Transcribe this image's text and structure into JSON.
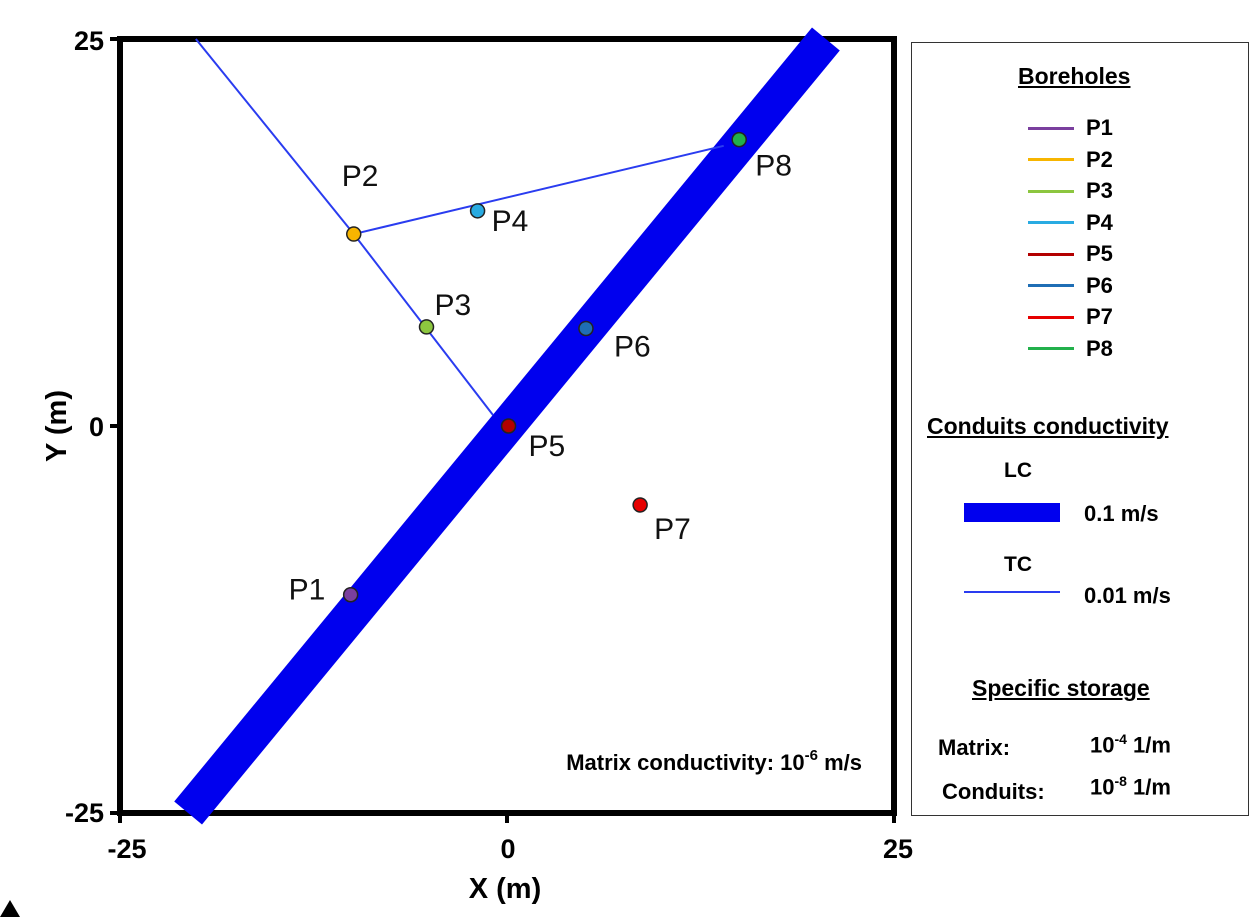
{
  "plot": {
    "x_label": "X (m)",
    "y_label": "Y (m)",
    "x_ticks": [
      "-25",
      "0",
      "25"
    ],
    "y_ticks": [
      "25",
      "0",
      "-25"
    ],
    "x_range": [
      -25,
      25
    ],
    "y_range": [
      -25,
      25
    ],
    "matrix_text": {
      "prefix": "Matrix conductivity: 10",
      "exp": "-6",
      "suffix": " m/s"
    }
  },
  "colors": {
    "lc_conduit": "#0000ee",
    "tc_conduit": "#2a3cf0",
    "axes": "#000000",
    "P1": "#7a3f9e",
    "P2": "#f7b500",
    "P3": "#8cc63f",
    "P4": "#29abe2",
    "P5": "#b30000",
    "P6": "#1f6eb5",
    "P7": "#e60000",
    "P8": "#22b04b"
  },
  "boreholes": [
    {
      "id": "P1",
      "label": "P1",
      "x": -10.1,
      "y": -10.9,
      "color": "#7a3f9e"
    },
    {
      "id": "P2",
      "label": "P2",
      "x": -9.9,
      "y": 12.4,
      "color": "#f7b500"
    },
    {
      "id": "P3",
      "label": "P3",
      "x": -5.2,
      "y": 6.4,
      "color": "#8cc63f"
    },
    {
      "id": "P4",
      "label": "P4",
      "x": -1.9,
      "y": 13.9,
      "color": "#29abe2"
    },
    {
      "id": "P5",
      "label": "P5",
      "x": 0.1,
      "y": 0.0,
      "color": "#b30000"
    },
    {
      "id": "P6",
      "label": "P6",
      "x": 5.1,
      "y": 6.3,
      "color": "#1f6eb5"
    },
    {
      "id": "P7",
      "label": "P7",
      "x": 8.6,
      "y": -5.1,
      "color": "#e60000"
    },
    {
      "id": "P8",
      "label": "P8",
      "x": 15.0,
      "y": 18.5,
      "color": "#22b04b"
    }
  ],
  "lc_conduit": {
    "from": [
      -20.6,
      -25
    ],
    "to": [
      20.6,
      25
    ]
  },
  "tc_conduits": [
    {
      "from": [
        -20.1,
        25
      ],
      "to": [
        -9.9,
        12.4
      ]
    },
    {
      "from": [
        -9.9,
        12.4
      ],
      "to": [
        -0.9,
        0.7
      ]
    },
    {
      "from": [
        -9.9,
        12.4
      ],
      "to": [
        14.0,
        18.1
      ]
    }
  ],
  "legend": {
    "boreholes_title": "Boreholes",
    "boreholes": [
      {
        "label": "P1",
        "color": "#7a3f9e"
      },
      {
        "label": "P2",
        "color": "#f7b500"
      },
      {
        "label": "P3",
        "color": "#8cc63f"
      },
      {
        "label": "P4",
        "color": "#29abe2"
      },
      {
        "label": "P5",
        "color": "#b30000"
      },
      {
        "label": "P6",
        "color": "#1f6eb5"
      },
      {
        "label": "P7",
        "color": "#e60000"
      },
      {
        "label": "P8",
        "color": "#22b04b"
      }
    ],
    "conduits_title": "Conduits conductivity",
    "lc_label": "LC",
    "lc_value": "0.1 m/s",
    "tc_label": "TC",
    "tc_value": "0.01 m/s",
    "storage_title": "Specific storage",
    "storage_matrix_label": "Matrix:",
    "storage_matrix_base": "10",
    "storage_matrix_exp": "-4",
    "storage_matrix_unit": " 1/m",
    "storage_conduits_label": "Conduits:",
    "storage_conduits_base": "10",
    "storage_conduits_exp": "-8",
    "storage_conduits_unit": " 1/m"
  }
}
